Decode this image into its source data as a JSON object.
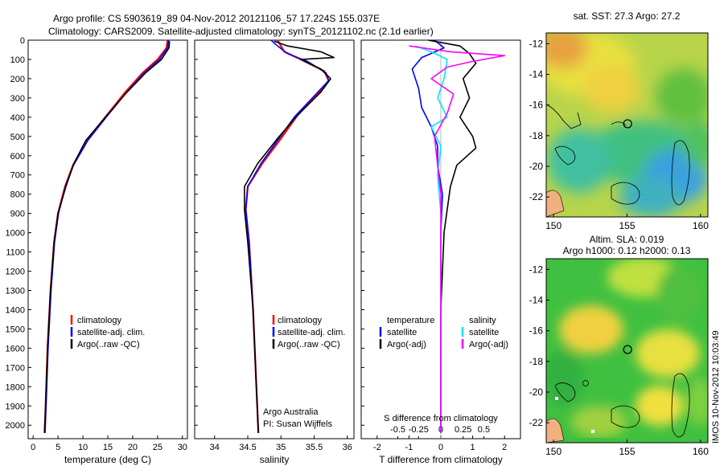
{
  "header": {
    "line1": "Argo profile: CS 5903619_89 04-Nov-2012 20121106_57 17.224S 155.037E",
    "line2": "Climatology: CARS2009. Satellite-adjusted climatology: synTS_20121102.nc (2.1d earlier)"
  },
  "colors": {
    "climatology": "#ff0000",
    "satellite": "#0000ff",
    "argo": "#000000",
    "sal_sat": "#00e5ff",
    "sal_argo": "#ff00ff"
  },
  "chart_data": [
    {
      "type": "line",
      "name": "temperature-profile",
      "xlabel": "temperature (deg C)",
      "ylabel": "",
      "xlim": [
        -1,
        31
      ],
      "ylim": [
        0,
        2070
      ],
      "xticks": [
        0,
        5,
        10,
        15,
        20,
        25,
        30
      ],
      "yticks": [
        0,
        100,
        200,
        300,
        400,
        500,
        600,
        700,
        800,
        900,
        1000,
        1100,
        1200,
        1300,
        1400,
        1500,
        1600,
        1700,
        1800,
        1900,
        2000
      ],
      "legend": [
        "climatology",
        "satellite-adj. clim.",
        "Argo(..raw -QC)"
      ],
      "series": [
        {
          "key": "clim",
          "points": [
            [
              27.0,
              0
            ],
            [
              26.8,
              40
            ],
            [
              25.0,
              100
            ],
            [
              22.0,
              170
            ],
            [
              18.5,
              270
            ],
            [
              14.5,
              400
            ],
            [
              10.8,
              520
            ],
            [
              8.0,
              650
            ],
            [
              6.4,
              760
            ],
            [
              5.0,
              900
            ],
            [
              4.2,
              1050
            ],
            [
              3.5,
              1300
            ],
            [
              2.9,
              1600
            ],
            [
              2.5,
              1900
            ],
            [
              2.3,
              2040
            ]
          ]
        },
        {
          "key": "sat",
          "points": [
            [
              27.2,
              0
            ],
            [
              27.0,
              40
            ],
            [
              25.4,
              100
            ],
            [
              22.3,
              170
            ],
            [
              18.8,
              270
            ],
            [
              14.7,
              400
            ],
            [
              11.0,
              520
            ],
            [
              8.1,
              650
            ],
            [
              6.5,
              760
            ],
            [
              5.1,
              900
            ],
            [
              4.3,
              1050
            ],
            [
              3.6,
              1300
            ],
            [
              3.0,
              1600
            ],
            [
              2.6,
              1900
            ],
            [
              2.4,
              2040
            ]
          ]
        },
        {
          "key": "argo",
          "points": [
            [
              27.4,
              5
            ],
            [
              27.3,
              40
            ],
            [
              25.8,
              100
            ],
            [
              22.6,
              170
            ],
            [
              18.5,
              280
            ],
            [
              14.2,
              410
            ],
            [
              10.6,
              520
            ],
            [
              8.2,
              640
            ],
            [
              6.6,
              760
            ],
            [
              5.0,
              900
            ],
            [
              4.2,
              1050
            ],
            [
              3.5,
              1300
            ],
            [
              2.9,
              1600
            ],
            [
              2.5,
              1900
            ],
            [
              2.3,
              2040
            ]
          ]
        }
      ]
    },
    {
      "type": "line",
      "name": "salinity-profile",
      "xlabel": "salinity",
      "xlim": [
        33.7,
        36.1
      ],
      "ylim": [
        0,
        2070
      ],
      "xticks": [
        34,
        34.5,
        35,
        35.5,
        36
      ],
      "legend": [
        "climatology",
        "satellite-adj. clim.",
        "Argo(..raw -QC)"
      ],
      "annot": [
        "Argo Australia",
        "PI: Susan Wijffels"
      ],
      "series": [
        {
          "key": "clim",
          "points": [
            [
              34.95,
              0
            ],
            [
              35.0,
              30
            ],
            [
              35.05,
              60
            ],
            [
              35.3,
              100
            ],
            [
              35.65,
              160
            ],
            [
              35.72,
              210
            ],
            [
              35.55,
              280
            ],
            [
              35.25,
              390
            ],
            [
              34.98,
              520
            ],
            [
              34.72,
              640
            ],
            [
              34.5,
              760
            ],
            [
              34.47,
              880
            ],
            [
              34.52,
              1050
            ],
            [
              34.58,
              1400
            ],
            [
              34.63,
              1800
            ],
            [
              34.66,
              2040
            ]
          ]
        },
        {
          "key": "sat",
          "points": [
            [
              34.85,
              0
            ],
            [
              34.95,
              30
            ],
            [
              35.1,
              70
            ],
            [
              35.4,
              110
            ],
            [
              35.68,
              170
            ],
            [
              35.72,
              210
            ],
            [
              35.5,
              290
            ],
            [
              35.2,
              400
            ],
            [
              34.95,
              520
            ],
            [
              34.7,
              640
            ],
            [
              34.5,
              760
            ],
            [
              34.47,
              880
            ],
            [
              34.52,
              1050
            ],
            [
              34.58,
              1400
            ],
            [
              34.63,
              1800
            ],
            [
              34.66,
              2040
            ]
          ]
        },
        {
          "key": "argo",
          "points": [
            [
              34.9,
              5
            ],
            [
              35.1,
              30
            ],
            [
              35.6,
              60
            ],
            [
              35.8,
              90
            ],
            [
              35.3,
              100
            ],
            [
              35.6,
              150
            ],
            [
              35.75,
              200
            ],
            [
              35.6,
              270
            ],
            [
              35.25,
              390
            ],
            [
              34.95,
              510
            ],
            [
              34.65,
              640
            ],
            [
              34.45,
              760
            ],
            [
              34.45,
              880
            ],
            [
              34.5,
              1050
            ],
            [
              34.58,
              1400
            ],
            [
              34.63,
              1800
            ],
            [
              34.66,
              2040
            ]
          ]
        }
      ]
    },
    {
      "type": "line",
      "name": "difference-profile",
      "xlabel": "T difference from climatology",
      "top_axis_label": "S difference from climatology",
      "xlim": [
        -2.5,
        2.5
      ],
      "ylim": [
        0,
        2070
      ],
      "xticks_t": [
        -2,
        -1,
        0,
        1,
        2
      ],
      "xticks_s_labels": [
        "-0.5",
        "-0.25",
        "0",
        "0.25",
        "0.5"
      ],
      "legend_titles": [
        "temperature",
        "salinity"
      ],
      "legend": [
        "satellite",
        "Argo(-adj)",
        "satellite",
        "Argo(-adj)"
      ],
      "series": [
        {
          "key": "t_sat",
          "points": [
            [
              -0.2,
              0
            ],
            [
              0.1,
              40
            ],
            [
              -0.6,
              90
            ],
            [
              -0.9,
              150
            ],
            [
              -0.7,
              250
            ],
            [
              -0.6,
              350
            ],
            [
              -0.3,
              450
            ],
            [
              -0.1,
              550
            ],
            [
              -0.1,
              650
            ],
            [
              0.05,
              800
            ],
            [
              0,
              1000
            ],
            [
              0,
              1300
            ],
            [
              0,
              2040
            ]
          ]
        },
        {
          "key": "t_argo",
          "points": [
            [
              -0.4,
              0
            ],
            [
              0.6,
              30
            ],
            [
              0.9,
              70
            ],
            [
              1.1,
              120
            ],
            [
              0.7,
              200
            ],
            [
              0.9,
              300
            ],
            [
              0.6,
              400
            ],
            [
              1.0,
              500
            ],
            [
              1.1,
              560
            ],
            [
              0.5,
              650
            ],
            [
              0.3,
              760
            ],
            [
              0.2,
              880
            ],
            [
              0.1,
              1000
            ],
            [
              0.05,
              1200
            ],
            [
              0,
              1400
            ],
            [
              0,
              2040
            ]
          ]
        },
        {
          "key": "s_sat",
          "points": [
            [
              -0.8,
              30
            ],
            [
              -0.3,
              60
            ],
            [
              0.2,
              100
            ],
            [
              0.1,
              200
            ],
            [
              -0.1,
              300
            ],
            [
              0.2,
              400
            ],
            [
              -0.3,
              450
            ],
            [
              0.0,
              550
            ],
            [
              -0.1,
              700
            ],
            [
              0.0,
              900
            ],
            [
              0.0,
              1200
            ],
            [
              0.0,
              2040
            ]
          ]
        },
        {
          "key": "s_argo",
          "points": [
            [
              -1.0,
              30
            ],
            [
              0.3,
              60
            ],
            [
              2.0,
              80
            ],
            [
              1.0,
              110
            ],
            [
              0.2,
              140
            ],
            [
              -0.3,
              200
            ],
            [
              0.4,
              280
            ],
            [
              0.2,
              380
            ],
            [
              -0.2,
              500
            ],
            [
              -0.1,
              650
            ],
            [
              0.0,
              800
            ],
            [
              0.0,
              1000
            ],
            [
              0.0,
              2040
            ]
          ]
        }
      ]
    },
    {
      "type": "heatmap",
      "name": "sst-map",
      "title": "sat. SST: 27.3 Argo: 27.2",
      "xticks": [
        150,
        155,
        160
      ],
      "yticks": [
        -12,
        -14,
        -16,
        -18,
        -20,
        -22
      ],
      "xlim": [
        149.5,
        160.5
      ],
      "ylim": [
        -23.3,
        -11.3
      ],
      "argo_position": [
        155.037,
        -17.224
      ]
    },
    {
      "type": "heatmap",
      "name": "sla-map",
      "title": "Altim. SLA: 0.019",
      "subtitle": "Argo h1000: 0.12 h2000: 0.13",
      "xticks": [
        150,
        155,
        160
      ],
      "yticks": [
        -12,
        -14,
        -16,
        -18,
        -20,
        -22
      ],
      "xlim": [
        149.5,
        160.5
      ],
      "ylim": [
        -23.3,
        -11.3
      ],
      "argo_position": [
        155.037,
        -17.224
      ]
    }
  ],
  "side_label": "IMOS 10-Nov-2012 10:03:49"
}
